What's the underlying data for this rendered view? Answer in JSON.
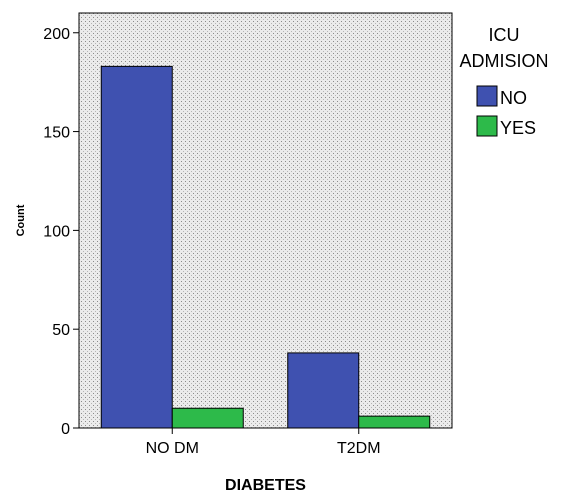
{
  "chart_data": {
    "type": "bar",
    "xlabel": "DIABETES",
    "ylabel": "Count",
    "categories": [
      "NO DM",
      "T2DM"
    ],
    "ylim": [
      0,
      210
    ],
    "yticks": [
      0,
      50,
      100,
      150,
      200
    ],
    "grid": false,
    "background": "dotted-gray",
    "legend": {
      "title_lines": [
        "ICU",
        "ADMISION"
      ],
      "placement": "right"
    },
    "series": [
      {
        "name": "NO",
        "color": "#3F51B0",
        "values": [
          183,
          38
        ]
      },
      {
        "name": "YES",
        "color": "#2DBA4A",
        "values": [
          10,
          6
        ]
      }
    ]
  }
}
